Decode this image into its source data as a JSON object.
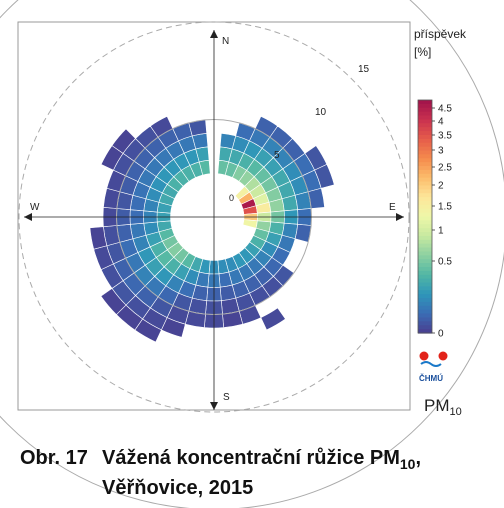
{
  "chart_data": {
    "type": "heatmap",
    "subtype": "polar-pollution-rose",
    "compass": {
      "n": "N",
      "e": "E",
      "s": "S",
      "w": "W"
    },
    "radial_ticks": [
      {
        "value": 5,
        "label": "5"
      },
      {
        "value": 10,
        "label": "10"
      },
      {
        "value": 15,
        "label": "15"
      }
    ],
    "center_label": "0",
    "sector_count": 36,
    "ring_count": 8,
    "bin_value_unit": "%",
    "cells": [
      [
        1,
        1,
        1.3
      ],
      [
        1,
        2,
        1
      ],
      [
        1,
        3,
        0.6
      ],
      [
        2,
        1,
        1.3
      ],
      [
        2,
        2,
        1
      ],
      [
        2,
        3,
        0.7
      ],
      [
        2,
        4,
        0.4
      ],
      [
        3,
        1,
        1.5
      ],
      [
        3,
        2,
        1.1
      ],
      [
        3,
        3,
        0.8
      ],
      [
        3,
        4,
        0.5
      ],
      [
        3,
        5,
        0.3
      ],
      [
        4,
        1,
        1.6
      ],
      [
        4,
        2,
        1.2
      ],
      [
        4,
        3,
        0.9
      ],
      [
        4,
        4,
        0.6
      ],
      [
        4,
        5,
        0.3
      ],
      [
        5,
        0,
        2.5
      ],
      [
        5,
        1,
        1.8
      ],
      [
        5,
        2,
        1.3
      ],
      [
        5,
        3,
        0.9
      ],
      [
        5,
        4,
        0.6
      ],
      [
        5,
        5,
        0.3
      ],
      [
        6,
        0,
        3.2
      ],
      [
        6,
        1,
        2
      ],
      [
        6,
        2,
        1.4
      ],
      [
        6,
        3,
        1
      ],
      [
        6,
        4,
        0.7
      ],
      [
        6,
        5,
        0.4
      ],
      [
        6,
        6,
        0.2
      ],
      [
        7,
        0,
        4.6
      ],
      [
        7,
        1,
        2.2
      ],
      [
        7,
        2,
        1.5
      ],
      [
        7,
        3,
        1
      ],
      [
        7,
        4,
        0.7
      ],
      [
        7,
        5,
        0.4
      ],
      [
        7,
        6,
        0.2
      ],
      [
        8,
        0,
        4
      ],
      [
        8,
        1,
        2.6
      ],
      [
        8,
        2,
        1.6
      ],
      [
        8,
        3,
        1
      ],
      [
        8,
        4,
        0.6
      ],
      [
        8,
        5,
        0.3
      ],
      [
        9,
        0,
        3
      ],
      [
        9,
        1,
        2
      ],
      [
        9,
        2,
        1.4
      ],
      [
        9,
        3,
        0.8
      ],
      [
        9,
        4,
        0.4
      ],
      [
        10,
        0,
        2.4
      ],
      [
        10,
        1,
        1.6
      ],
      [
        10,
        2,
        1.1
      ],
      [
        10,
        3,
        0.6
      ],
      [
        10,
        4,
        0.3
      ],
      [
        11,
        1,
        1.3
      ],
      [
        11,
        2,
        0.9
      ],
      [
        11,
        3,
        0.5
      ],
      [
        12,
        1,
        1.1
      ],
      [
        12,
        2,
        0.7
      ],
      [
        12,
        3,
        0.4
      ],
      [
        13,
        1,
        0.9
      ],
      [
        13,
        2,
        0.6
      ],
      [
        13,
        3,
        0.35
      ],
      [
        13,
        4,
        0.2
      ],
      [
        14,
        1,
        0.8
      ],
      [
        14,
        2,
        0.5
      ],
      [
        14,
        3,
        0.3
      ],
      [
        14,
        4,
        0.15
      ],
      [
        15,
        1,
        0.8
      ],
      [
        15,
        2,
        0.5
      ],
      [
        15,
        3,
        0.3
      ],
      [
        15,
        4,
        0.15
      ],
      [
        15,
        6,
        0.1
      ],
      [
        16,
        1,
        0.7
      ],
      [
        16,
        2,
        0.5
      ],
      [
        16,
        3,
        0.3
      ],
      [
        16,
        4,
        0.15
      ],
      [
        16,
        5,
        0.1
      ],
      [
        17,
        1,
        0.7
      ],
      [
        17,
        2,
        0.4
      ],
      [
        17,
        3,
        0.25
      ],
      [
        17,
        4,
        0.1
      ],
      [
        17,
        5,
        0.05
      ],
      [
        18,
        1,
        0.7
      ],
      [
        18,
        2,
        0.5
      ],
      [
        18,
        3,
        0.3
      ],
      [
        18,
        4,
        0.15
      ],
      [
        18,
        5,
        0.1
      ],
      [
        19,
        1,
        0.8
      ],
      [
        19,
        2,
        0.5
      ],
      [
        19,
        3,
        0.3
      ],
      [
        19,
        4,
        0.15
      ],
      [
        19,
        5,
        0.1
      ],
      [
        20,
        1,
        1
      ],
      [
        20,
        2,
        0.7
      ],
      [
        20,
        3,
        0.4
      ],
      [
        20,
        4,
        0.2
      ],
      [
        20,
        5,
        0.1
      ],
      [
        20,
        6,
        0.05
      ],
      [
        21,
        1,
        1.2
      ],
      [
        21,
        2,
        0.9
      ],
      [
        21,
        3,
        0.6
      ],
      [
        21,
        4,
        0.35
      ],
      [
        21,
        5,
        0.2
      ],
      [
        21,
        6,
        0.1
      ],
      [
        21,
        7,
        0.05
      ],
      [
        22,
        1,
        1.4
      ],
      [
        22,
        2,
        1.1
      ],
      [
        22,
        3,
        0.8
      ],
      [
        22,
        4,
        0.5
      ],
      [
        22,
        5,
        0.3
      ],
      [
        22,
        6,
        0.15
      ],
      [
        22,
        7,
        0.05
      ],
      [
        23,
        1,
        1.5
      ],
      [
        23,
        2,
        1.2
      ],
      [
        23,
        3,
        0.9
      ],
      [
        23,
        4,
        0.6
      ],
      [
        23,
        5,
        0.35
      ],
      [
        23,
        6,
        0.2
      ],
      [
        23,
        7,
        0.05
      ],
      [
        24,
        1,
        1.4
      ],
      [
        24,
        2,
        1.1
      ],
      [
        24,
        3,
        0.8
      ],
      [
        24,
        4,
        0.5
      ],
      [
        24,
        5,
        0.3
      ],
      [
        24,
        6,
        0.15
      ],
      [
        25,
        1,
        1.2
      ],
      [
        25,
        2,
        0.9
      ],
      [
        25,
        3,
        0.6
      ],
      [
        25,
        4,
        0.4
      ],
      [
        25,
        5,
        0.2
      ],
      [
        25,
        6,
        0.1
      ],
      [
        26,
        1,
        1
      ],
      [
        26,
        2,
        0.7
      ],
      [
        26,
        3,
        0.5
      ],
      [
        26,
        4,
        0.3
      ],
      [
        26,
        5,
        0.15
      ],
      [
        26,
        6,
        0.05
      ],
      [
        27,
        1,
        0.9
      ],
      [
        27,
        2,
        0.6
      ],
      [
        27,
        3,
        0.4
      ],
      [
        27,
        4,
        0.25
      ],
      [
        27,
        5,
        0.1
      ],
      [
        28,
        1,
        0.9
      ],
      [
        28,
        2,
        0.6
      ],
      [
        28,
        3,
        0.4
      ],
      [
        28,
        4,
        0.2
      ],
      [
        28,
        5,
        0.1
      ],
      [
        29,
        1,
        1
      ],
      [
        29,
        2,
        0.7
      ],
      [
        29,
        3,
        0.45
      ],
      [
        29,
        4,
        0.25
      ],
      [
        29,
        5,
        0.1
      ],
      [
        30,
        1,
        1
      ],
      [
        30,
        2,
        0.75
      ],
      [
        30,
        3,
        0.5
      ],
      [
        30,
        4,
        0.3
      ],
      [
        30,
        5,
        0.15
      ],
      [
        30,
        6,
        0.05
      ],
      [
        31,
        1,
        1.1
      ],
      [
        31,
        2,
        0.8
      ],
      [
        31,
        3,
        0.5
      ],
      [
        31,
        4,
        0.3
      ],
      [
        31,
        5,
        0.15
      ],
      [
        31,
        6,
        0.05
      ],
      [
        32,
        1,
        1.1
      ],
      [
        32,
        2,
        0.8
      ],
      [
        32,
        3,
        0.5
      ],
      [
        32,
        4,
        0.3
      ],
      [
        32,
        5,
        0.15
      ],
      [
        33,
        1,
        1.1
      ],
      [
        33,
        2,
        0.8
      ],
      [
        33,
        3,
        0.5
      ],
      [
        33,
        4,
        0.3
      ],
      [
        33,
        5,
        0.1
      ],
      [
        34,
        1,
        1.1
      ],
      [
        34,
        2,
        0.8
      ],
      [
        34,
        3,
        0.5
      ],
      [
        34,
        4,
        0.3
      ],
      [
        35,
        1,
        1.2
      ],
      [
        35,
        2,
        0.9
      ],
      [
        35,
        3,
        0.5
      ],
      [
        35,
        4,
        0.2
      ]
    ],
    "legend": {
      "title_line1": "příspěvek",
      "title_line2": "[%]",
      "min": 0,
      "max": 4.7,
      "ticks": [
        {
          "value": 4.5,
          "label": "4.5"
        },
        {
          "value": 4,
          "label": "4"
        },
        {
          "value": 3.5,
          "label": "3.5"
        },
        {
          "value": 3,
          "label": "3"
        },
        {
          "value": 2.5,
          "label": "2.5"
        },
        {
          "value": 2,
          "label": "2"
        },
        {
          "value": 1.5,
          "label": "1.5"
        },
        {
          "value": 1,
          "label": "1"
        },
        {
          "value": 0.5,
          "label": "0.5"
        },
        {
          "value": 0,
          "label": "0"
        }
      ],
      "colors": [
        "#4a3e8f",
        "#3a6db5",
        "#2e96b9",
        "#52b7a4",
        "#8dd0a1",
        "#c7e9a0",
        "#eef7a8",
        "#fde69a",
        "#fcbc6b",
        "#f58a4c",
        "#e55b4b",
        "#c8304f",
        "#a0124a"
      ]
    },
    "logo_text": "ČHMÚ",
    "pollutant": {
      "base": "PM",
      "sub": "10"
    }
  },
  "caption": {
    "number": "Obr. 17",
    "title_base": "Vážená koncentrační růžice PM",
    "title_sub": "10",
    "title_end": ",",
    "line2": "Věřňovice, 2015"
  }
}
